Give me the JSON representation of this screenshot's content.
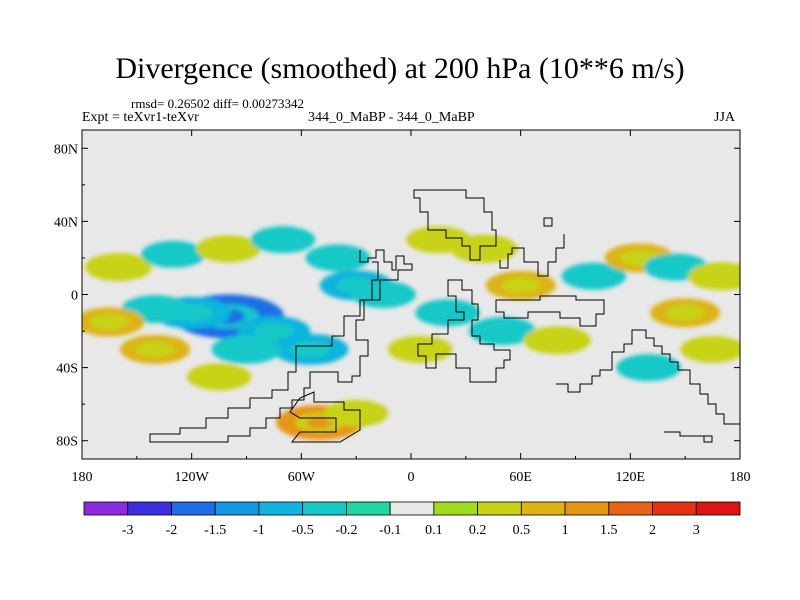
{
  "chart_data": {
    "type": "heatmap",
    "title": "Divergence (smoothed) at 200 hPa (10**6 m/s)",
    "stats": "rmsd= 0.26502 diff= 0.00273342",
    "expt_label": "Expt = teXvr1-teXvr",
    "cases_label": "344_0_MaBP - 344_0_MaBP",
    "season": "JJA",
    "xlim": [
      -180,
      180
    ],
    "ylim": [
      -90,
      90
    ],
    "x_ticks": [
      -180,
      -120,
      -60,
      0,
      60,
      120,
      180
    ],
    "x_tick_labels": [
      "180",
      "120W",
      "60W",
      "0",
      "60E",
      "120E",
      "180"
    ],
    "y_ticks": [
      80,
      40,
      0,
      -40,
      -80
    ],
    "y_tick_labels": [
      "80N",
      "40N",
      "0",
      "40S",
      "80S"
    ],
    "colorbar": {
      "levels": [
        "-3",
        "-2",
        "-1.5",
        "-1",
        "-0.5",
        "-0.2",
        "-0.1",
        "0.1",
        "0.2",
        "0.5",
        "1",
        "1.5",
        "2",
        "3"
      ],
      "colors": [
        "#8a2be2",
        "#3c2fe0",
        "#1e6ee6",
        "#1496e6",
        "#10b4dc",
        "#14c8c8",
        "#1ed7a0",
        "#e8e8e8",
        "#a0dc1e",
        "#c8d214",
        "#dcb414",
        "#e69614",
        "#e66414",
        "#e63214",
        "#dc1414"
      ]
    },
    "background_color": "#e8e8e8",
    "features": [
      {
        "lon": -100,
        "lat": -12,
        "value": -2.0
      },
      {
        "lon": -120,
        "lat": -10,
        "value": -0.8
      },
      {
        "lon": -140,
        "lat": -8,
        "value": -0.4
      },
      {
        "lon": -75,
        "lat": -20,
        "value": -0.6
      },
      {
        "lon": -55,
        "lat": -30,
        "value": -0.7
      },
      {
        "lon": -90,
        "lat": -30,
        "value": -0.5
      },
      {
        "lon": -165,
        "lat": -15,
        "value": 0.5
      },
      {
        "lon": -140,
        "lat": -30,
        "value": 0.5
      },
      {
        "lon": -105,
        "lat": -45,
        "value": 0.3
      },
      {
        "lon": -160,
        "lat": 15,
        "value": 0.4
      },
      {
        "lon": -130,
        "lat": 22,
        "value": -0.3
      },
      {
        "lon": -100,
        "lat": 25,
        "value": 0.3
      },
      {
        "lon": -70,
        "lat": 30,
        "value": -0.3
      },
      {
        "lon": -40,
        "lat": 20,
        "value": -0.3
      },
      {
        "lon": -30,
        "lat": 5,
        "value": -0.6
      },
      {
        "lon": -15,
        "lat": 0,
        "value": -0.3
      },
      {
        "lon": -50,
        "lat": -70,
        "value": 1.1
      },
      {
        "lon": -30,
        "lat": -65,
        "value": 0.3
      },
      {
        "lon": 15,
        "lat": 30,
        "value": 0.3
      },
      {
        "lon": 40,
        "lat": 25,
        "value": 0.4
      },
      {
        "lon": 60,
        "lat": 5,
        "value": 0.5
      },
      {
        "lon": 50,
        "lat": -20,
        "value": -0.4
      },
      {
        "lon": 80,
        "lat": -25,
        "value": 0.4
      },
      {
        "lon": 100,
        "lat": 10,
        "value": -0.3
      },
      {
        "lon": 125,
        "lat": 20,
        "value": 0.5
      },
      {
        "lon": 145,
        "lat": 15,
        "value": -0.3
      },
      {
        "lon": 170,
        "lat": 10,
        "value": 0.4
      },
      {
        "lon": 150,
        "lat": -10,
        "value": 0.5
      },
      {
        "lon": 165,
        "lat": -30,
        "value": 0.3
      },
      {
        "lon": 130,
        "lat": -40,
        "value": -0.3
      },
      {
        "lon": 5,
        "lat": -30,
        "value": 0.3
      },
      {
        "lon": 20,
        "lat": -10,
        "value": -0.3
      }
    ]
  }
}
